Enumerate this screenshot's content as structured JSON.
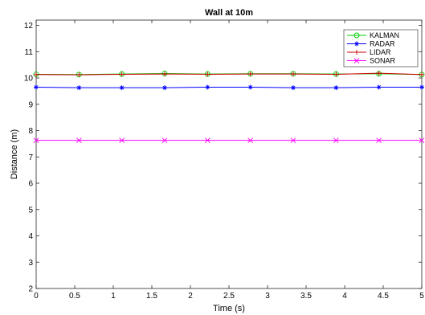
{
  "chart_data": {
    "type": "line",
    "title": "Wall at 10m",
    "xlabel": "Time (s)",
    "ylabel": "Distance (m)",
    "xlim": [
      0,
      5
    ],
    "ylim": [
      2,
      12.2
    ],
    "xticks": [
      0,
      0.5,
      1,
      1.5,
      2,
      2.5,
      3,
      3.5,
      4,
      4.5,
      5
    ],
    "yticks": [
      2,
      3,
      4,
      5,
      6,
      7,
      8,
      9,
      10,
      11,
      12
    ],
    "grid": false,
    "legend_position": "top-right",
    "x": [
      0,
      0.556,
      1.111,
      1.667,
      2.222,
      2.778,
      3.333,
      3.889,
      4.444,
      5.0
    ],
    "series": [
      {
        "name": "KALMAN",
        "color": "#00cc00",
        "marker": "circle",
        "values": [
          10.14,
          10.13,
          10.15,
          10.17,
          10.15,
          10.16,
          10.16,
          10.15,
          10.16,
          10.13
        ]
      },
      {
        "name": "RADAR",
        "color": "#0000ff",
        "marker": "asterisk",
        "values": [
          9.65,
          9.63,
          9.63,
          9.63,
          9.65,
          9.65,
          9.63,
          9.63,
          9.65,
          9.65
        ]
      },
      {
        "name": "LIDAR",
        "color": "#cc0000",
        "marker": "plus",
        "values": [
          10.13,
          10.12,
          10.14,
          10.15,
          10.14,
          10.15,
          10.15,
          10.14,
          10.18,
          10.13
        ]
      },
      {
        "name": "SONAR",
        "color": "#ff00ff",
        "marker": "x",
        "values": [
          7.63,
          7.63,
          7.63,
          7.63,
          7.63,
          7.63,
          7.63,
          7.63,
          7.63,
          7.63
        ]
      }
    ]
  }
}
